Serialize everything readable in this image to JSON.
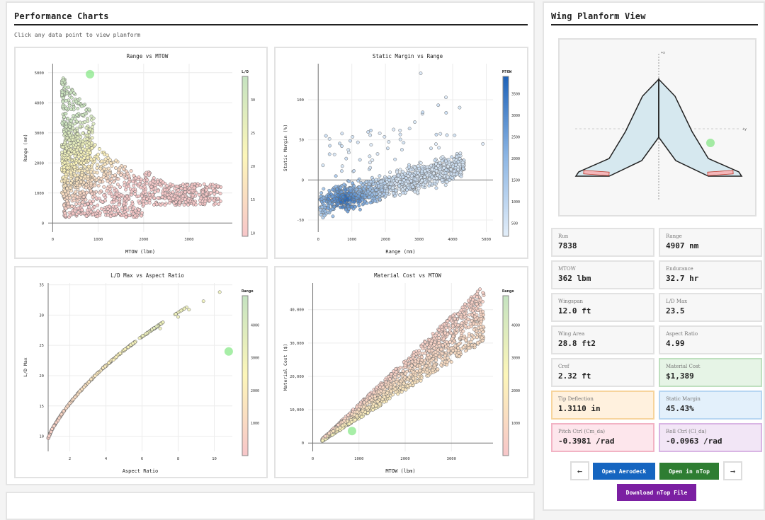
{
  "performance": {
    "title": "Performance Charts",
    "subtitle": "Click any data point to view planform"
  },
  "planform": {
    "title": "Wing Planform View",
    "axis_x_label": "+x",
    "axis_y_label": "+y",
    "outline_color": "#222222",
    "fill_color": "#d6e8ef",
    "control_surface_color": "#f4b8bb"
  },
  "metrics": [
    {
      "label": "Run",
      "value": "7838",
      "style": "plain"
    },
    {
      "label": "Range",
      "value": "4907 nm",
      "style": "plain"
    },
    {
      "label": "MTOW",
      "value": "362 lbm",
      "style": "plain"
    },
    {
      "label": "Endurance",
      "value": "32.7 hr",
      "style": "plain"
    },
    {
      "label": "Wingspan",
      "value": "12.0 ft",
      "style": "plain"
    },
    {
      "label": "L/D Max",
      "value": "23.5",
      "style": "plain"
    },
    {
      "label": "Wing Area",
      "value": "28.8 ft2",
      "style": "plain"
    },
    {
      "label": "Aspect Ratio",
      "value": "4.99",
      "style": "plain"
    },
    {
      "label": "Cref",
      "value": "2.32 ft",
      "style": "plain"
    },
    {
      "label": "Material Cost",
      "value": "$1,389",
      "style": "green"
    },
    {
      "label": "Tip Deflection",
      "value": "1.3110 in",
      "style": "orange"
    },
    {
      "label": "Static Margin",
      "value": "45.43%",
      "style": "blue"
    },
    {
      "label": "Pitch Ctrl (Cm_da)",
      "value": "-0.3981 /rad",
      "style": "pink"
    },
    {
      "label": "Roll Ctrl (Cl_da)",
      "value": "-0.0963 /rad",
      "style": "purple"
    }
  ],
  "buttons": {
    "prev": "←",
    "next": "→",
    "open_aerodeck": "Open Aerodeck",
    "open_ntop": "Open in nTop",
    "download_ntop": "Download nTop File"
  },
  "colors": {
    "aerodeck_button": "#1565c0",
    "ntop_button": "#2e7d32",
    "download_button": "#7b1fa2",
    "highlight": "#5ee05e"
  },
  "chart_data": [
    {
      "type": "scatter",
      "title": "Range vs MTOW",
      "xlabel": "MTOW (lbm)",
      "ylabel": "Range (nm)",
      "xlim": [
        -100,
        3950
      ],
      "ylim": [
        -300,
        5300
      ],
      "xticks": [
        0,
        1000,
        2000,
        3000
      ],
      "yticks": [
        0,
        1000,
        2000,
        3000,
        4000,
        5000
      ],
      "xtick_labels": [
        "0",
        "1000",
        "2000",
        "3000"
      ],
      "ytick_labels": [
        "0",
        "1000",
        "2000",
        "3000",
        "4000",
        "5000"
      ],
      "grid": true,
      "colorbar": {
        "label": "L/D",
        "range": [
          9.5,
          33.5
        ],
        "ticks": [
          10,
          15,
          20,
          25,
          30
        ],
        "colorscale": [
          "#f7c6c9",
          "#fdf6b9",
          "#c5e3c1"
        ]
      },
      "highlight": {
        "x": 820,
        "y": 4950
      },
      "distribution": "Dense cloud concentrated at MTOW 200–1500 lbm, range 0–5000 nm; long tail toward MTOW ~3700 lbm at range ~600–1400 nm. High L/D (green/yellow) at low MTOW / high range; low L/D (pink) elsewhere.",
      "clusters": [
        {
          "x_range": [
            200,
            800
          ],
          "y_range": [
            1000,
            4900
          ],
          "color_value": 24,
          "count": 500
        },
        {
          "x_range": [
            300,
            1600
          ],
          "y_range": [
            150,
            2800
          ],
          "color_value": 14,
          "count": 700
        },
        {
          "x_range": [
            1000,
            2500
          ],
          "y_range": [
            350,
            2000
          ],
          "color_value": 12,
          "count": 450
        },
        {
          "x_range": [
            2000,
            3700
          ],
          "y_range": [
            550,
            1200
          ],
          "color_value": 11,
          "count": 200
        }
      ]
    },
    {
      "type": "scatter",
      "title": "Static Margin vs Range",
      "xlabel": "Range (nm)",
      "ylabel": "Static Margin (%)",
      "xlim": [
        -300,
        5200
      ],
      "ylim": [
        -65,
        145
      ],
      "xticks": [
        0,
        1000,
        2000,
        3000,
        4000,
        5000
      ],
      "yticks": [
        -50,
        0,
        50,
        100
      ],
      "xtick_labels": [
        "0",
        "1000",
        "2000",
        "3000",
        "4000",
        "5000"
      ],
      "ytick_labels": [
        "-50",
        "0",
        "50",
        "100"
      ],
      "grid": true,
      "colorbar": {
        "label": "MTOW",
        "range": [
          200,
          3900
        ],
        "ticks": [
          500,
          1000,
          1500,
          2000,
          2500,
          3000,
          3500
        ],
        "colorscale": [
          "#e3eef9",
          "#8db6e4",
          "#1e62b8"
        ]
      },
      "distribution": "Broad band rising from about -30% at low range to about +20% at 4000 nm; scattered outliers up to 133% at ~3000 nm. Darker blue (higher MTOW) clustered near range 600–1000 nm, margin -25%.",
      "clusters": [
        {
          "x_range": [
            50,
            1500
          ],
          "y_range": [
            -45,
            5
          ],
          "color_value": 1400,
          "count": 400
        },
        {
          "x_range": [
            1000,
            3000
          ],
          "y_range": [
            -35,
            25
          ],
          "color_value": 900,
          "count": 600
        },
        {
          "x_range": [
            2500,
            4200
          ],
          "y_range": [
            -20,
            35
          ],
          "color_value": 700,
          "count": 300
        },
        {
          "x_range": [
            1400,
            4900
          ],
          "y_range": [
            30,
            95
          ],
          "color_value": 500,
          "count": 60
        }
      ]
    },
    {
      "type": "scatter",
      "title": "L/D Max vs Aspect Ratio",
      "xlabel": "Aspect Ratio",
      "ylabel": "L/D Max",
      "xlim": [
        0.8,
        11.0
      ],
      "ylim": [
        7.5,
        35.3
      ],
      "xticks": [
        2,
        4,
        6,
        8,
        10
      ],
      "yticks": [
        10,
        15,
        20,
        25,
        30,
        35
      ],
      "xtick_labels": [
        "2",
        "4",
        "6",
        "8",
        "10"
      ],
      "ytick_labels": [
        "10",
        "15",
        "20",
        "25",
        "30",
        "35"
      ],
      "grid": true,
      "colorbar": {
        "label": "Range",
        "range": [
          0,
          4900
        ],
        "ticks": [
          1000,
          2000,
          3000,
          4000
        ],
        "colorscale": [
          "#f7c6c9",
          "#fdf6b9",
          "#c5e3c1"
        ]
      },
      "highlight": {
        "x": 10.8,
        "y": 24
      },
      "curve": {
        "description": "Monotonic concave curve, L/D ≈ 10.5·sqrt(AR)",
        "x": [
          0.65,
          1,
          2,
          3,
          4,
          5,
          6,
          7,
          8,
          8.6,
          9.4,
          10.3
        ],
        "y": [
          9.2,
          10.8,
          15.0,
          18.2,
          21.0,
          23.5,
          25.7,
          27.8,
          29.7,
          30.9,
          32.3,
          33.8
        ]
      }
    },
    {
      "type": "scatter",
      "title": "Material Cost vs MTOW",
      "xlabel": "MTOW (lbm)",
      "ylabel": "Material Cost ($)",
      "xlim": [
        -100,
        3900
      ],
      "ylim": [
        -2500,
        48000
      ],
      "xticks": [
        0,
        1000,
        2000,
        3000
      ],
      "yticks": [
        0,
        10000,
        20000,
        30000,
        40000
      ],
      "xtick_labels": [
        "0",
        "1000",
        "2000",
        "3000"
      ],
      "ytick_labels": [
        "0",
        "10,000",
        "20,000",
        "30,000",
        "40,000"
      ],
      "grid": true,
      "colorbar": {
        "label": "Range",
        "range": [
          0,
          4900
        ],
        "ticks": [
          1000,
          2000,
          3000,
          4000
        ],
        "colorscale": [
          "#f7c6c9",
          "#fdf6b9",
          "#c5e3c1"
        ]
      },
      "highlight": {
        "x": 850,
        "y": 3600
      },
      "distribution": "Wedge-shaped band rising roughly linearly from (200, 1000) to (3700, 45000); upper edge pink (low range), lower edge yellow-green (higher range).",
      "band": {
        "x_start": 200,
        "x_end": 3700,
        "slope_upper": 13.5,
        "slope_lower": 9.0
      }
    }
  ]
}
